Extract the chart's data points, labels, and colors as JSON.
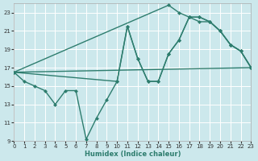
{
  "xlabel": "Humidex (Indice chaleur)",
  "bg_color": "#cce8ec",
  "grid_color": "#ffffff",
  "line_color": "#2e7d6e",
  "xlim": [
    0,
    23
  ],
  "ylim": [
    9,
    24
  ],
  "xticks": [
    0,
    1,
    2,
    3,
    4,
    5,
    6,
    7,
    8,
    9,
    10,
    11,
    12,
    13,
    14,
    15,
    16,
    17,
    18,
    19,
    20,
    21,
    22,
    23
  ],
  "yticks": [
    9,
    11,
    13,
    15,
    17,
    19,
    21,
    23
  ],
  "line1_x": [
    0,
    1,
    2,
    3,
    4,
    5,
    6,
    7,
    8,
    9,
    10,
    11,
    12,
    13,
    14,
    15,
    16,
    17,
    18,
    19,
    20,
    21,
    22,
    23
  ],
  "line1_y": [
    16.5,
    15.5,
    15.0,
    14.5,
    13.0,
    14.5,
    14.5,
    9.2,
    11.5,
    13.5,
    15.5,
    21.5,
    18.0,
    15.5,
    15.5,
    18.5,
    20.0,
    22.5,
    22.5,
    22.0,
    21.0,
    19.5,
    18.8,
    17.0
  ],
  "line2_x": [
    0,
    15,
    16,
    17,
    18,
    19,
    20,
    21,
    22,
    23
  ],
  "line2_y": [
    16.5,
    23.8,
    23.0,
    22.5,
    22.0,
    22.0,
    21.0,
    19.5,
    18.8,
    17.0
  ],
  "line3_x": [
    0,
    10,
    11,
    12,
    13,
    14,
    15,
    16,
    17,
    18,
    19,
    20,
    21,
    22,
    23
  ],
  "line3_y": [
    16.5,
    15.5,
    21.5,
    18.0,
    15.5,
    15.5,
    18.5,
    20.0,
    22.5,
    22.5,
    22.0,
    21.0,
    19.5,
    18.8,
    17.0
  ],
  "line4_x": [
    0,
    23
  ],
  "line4_y": [
    16.5,
    17.0
  ],
  "marker_size": 2.5,
  "linewidth": 1.0
}
